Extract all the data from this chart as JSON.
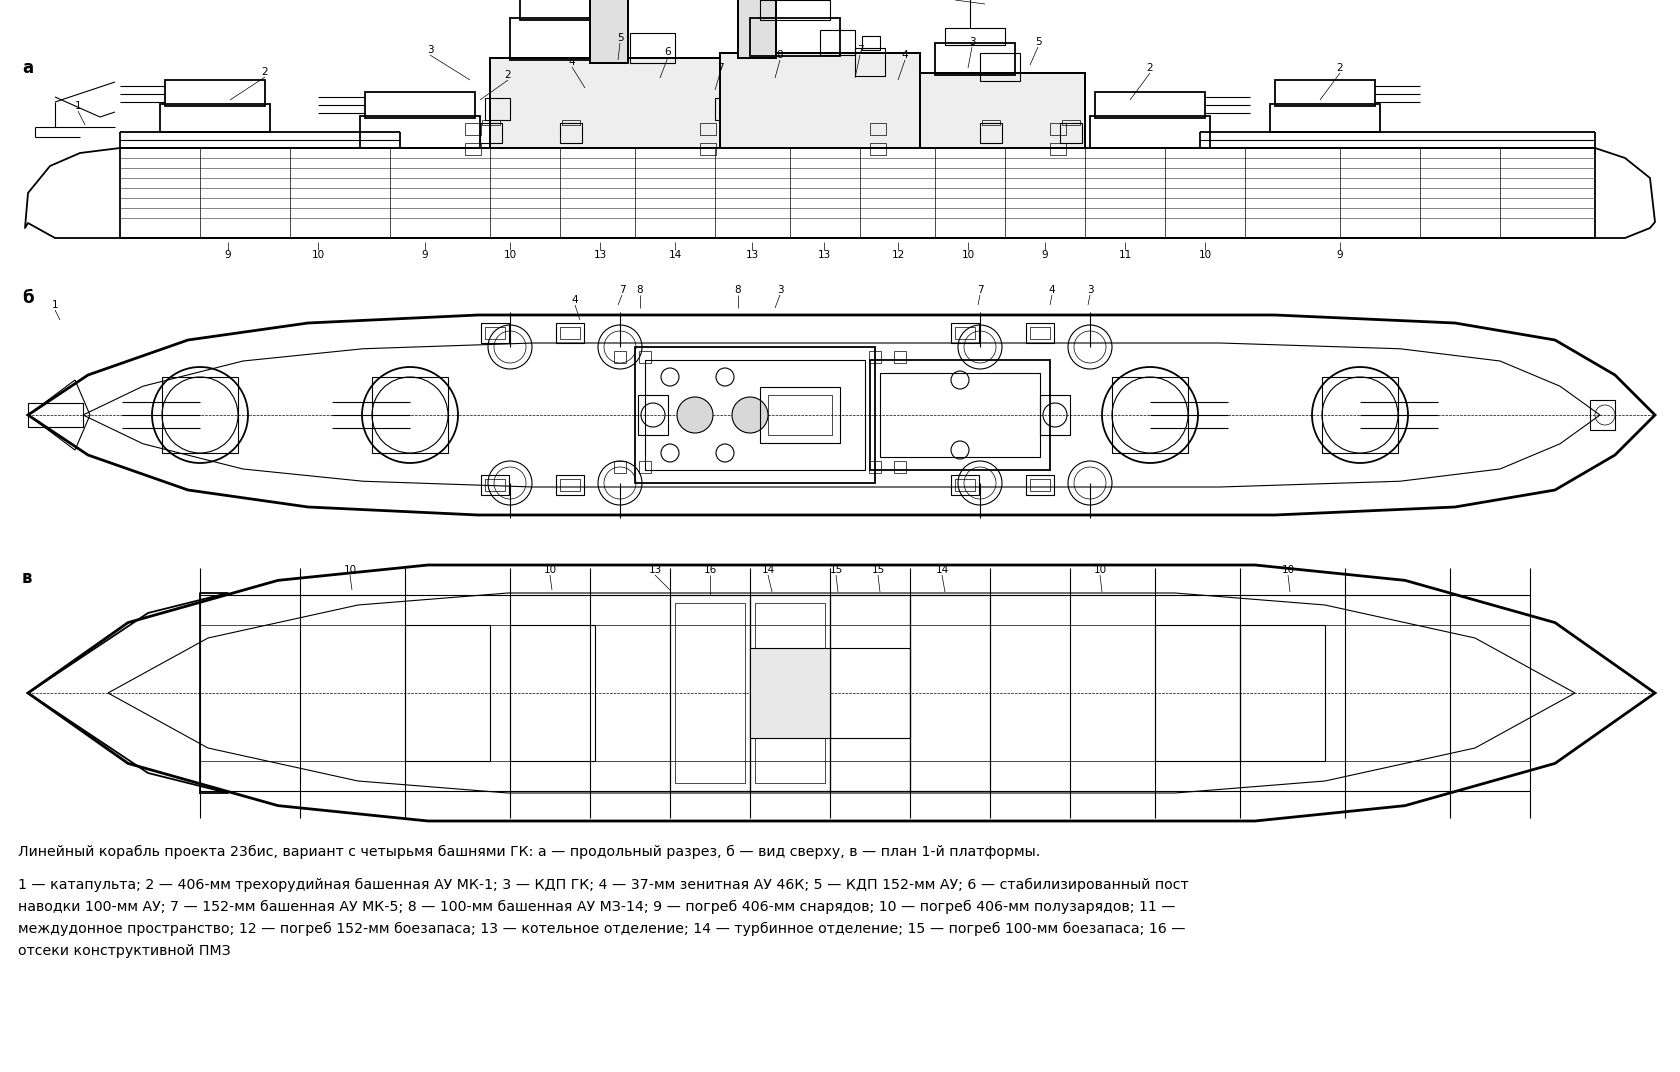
{
  "background_color": "#ffffff",
  "label_a": "а",
  "label_b": "б",
  "label_v": "в",
  "caption_line1": "Линейный корабль проекта 23бис, вариант с четырьмя башнями ГК: а — продольный разрез, б — вид сверху, в — план 1-й платформы.",
  "caption_line2": "1 — катапульта; 2 — 406-мм трехорудийная башенная АУ МК-1; 3 — КДП ГК; 4 — 37-мм зенитная АУ 46К; 5 — КДП 152-мм АУ; 6 — стабилизированный пост",
  "caption_line3": "наводки 100-мм АУ; 7 — 152-мм башенная АУ МК-5; 8 — 100-мм башенная АУ МЗ-14; 9 — погреб 406-мм снарядов; 10 — погреб 406-мм полузарядов; 11 —",
  "caption_line4": "междудонное пространство; 12 — погреб 152-мм боезапаса; 13 — котельное отделение; 14 — турбинное отделение; 15 — погреб 100-мм боезапаса; 16 —",
  "caption_line5": "отсеки конструктивной ПМЗ"
}
